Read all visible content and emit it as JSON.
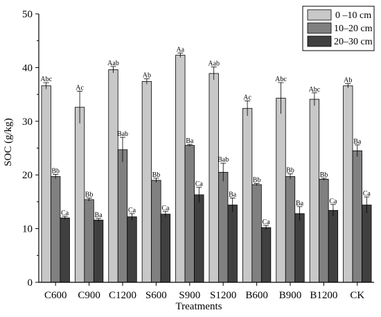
{
  "chart_data": {
    "type": "bar",
    "title": "",
    "xlabel": "Treatments",
    "ylabel": "SOC (g/kg)",
    "ylim": [
      0,
      50
    ],
    "yticks": [
      0,
      10,
      20,
      30,
      40,
      50
    ],
    "grid": false,
    "legend_position": "top-right",
    "categories": [
      "C600",
      "C900",
      "C1200",
      "S600",
      "S900",
      "S1200",
      "B600",
      "B900",
      "B1200",
      "CK"
    ],
    "series": [
      {
        "name": "0 –10 cm",
        "color": "#c8c8c8",
        "values": [
          36.6,
          32.6,
          39.6,
          37.4,
          42.3,
          38.9,
          32.4,
          34.3,
          34.1,
          36.6
        ],
        "errors": [
          0.6,
          3.0,
          0.6,
          0.5,
          0.4,
          1.2,
          1.4,
          2.9,
          1.2,
          0.4
        ],
        "labels": [
          "Abc",
          "Ac",
          "Aab",
          "Ab",
          "Aa",
          "Aab",
          "Ac",
          "Abc",
          "Abc",
          "Ab"
        ]
      },
      {
        "name": "10–20 cm",
        "color": "#808080",
        "values": [
          19.7,
          15.4,
          24.7,
          19.0,
          25.5,
          20.5,
          18.2,
          19.7,
          19.2,
          24.5
        ],
        "errors": [
          0.4,
          0.3,
          2.3,
          0.4,
          0.2,
          1.7,
          0.2,
          0.5,
          0.2,
          1.1
        ],
        "labels": [
          "Bb",
          "Bb",
          "Bab",
          "Bb",
          "Ba",
          "Bab",
          "Bb",
          "Bb",
          "Bb",
          "Ba"
        ]
      },
      {
        "name": "20–30 cm",
        "color": "#404040",
        "values": [
          12.0,
          11.6,
          12.2,
          12.7,
          16.3,
          14.4,
          10.2,
          12.8,
          13.4,
          14.4
        ],
        "errors": [
          0.3,
          0.3,
          0.6,
          0.5,
          1.4,
          1.3,
          0.4,
          1.3,
          1.1,
          1.5
        ],
        "labels": [
          "Ca",
          "Ba",
          "Ca",
          "Ca",
          "Ca",
          "Ba",
          "Ca",
          "Ba",
          "Ca",
          "Ca"
        ]
      }
    ]
  }
}
